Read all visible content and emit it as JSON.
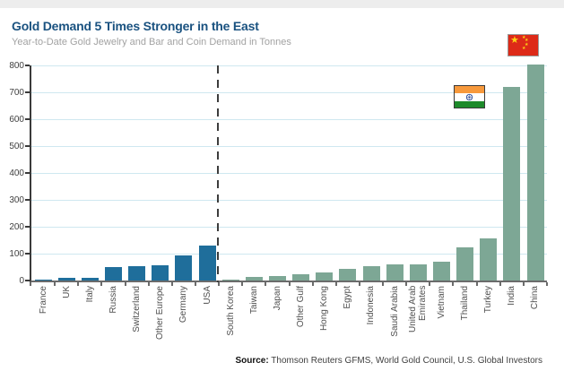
{
  "source": {
    "label": "Source:",
    "text": " Thomson Reuters GFMS, World Gold Council, U.S. Global Investors"
  },
  "chart_data": {
    "type": "bar",
    "title": "Gold Demand 5 Times Stronger in the East",
    "subtitle": "Year-to-Date Gold Jewelry and Bar and Coin Demand in Tonnes",
    "ylabel": "Tonnes",
    "xlabel": "",
    "ylim": [
      0,
      800
    ],
    "yticks": [
      0,
      100,
      200,
      300,
      400,
      500,
      600,
      700,
      800
    ],
    "grid": "horizontal light-blue",
    "legend": "none",
    "divider": {
      "style": "vertical dashed line",
      "between": [
        "USA",
        "South Korea"
      ],
      "meaning": "separates West (blue bars) from East (green bars)"
    },
    "annotations": [
      {
        "icon": "india-flag-icon",
        "near": "India bar top"
      },
      {
        "icon": "china-flag-icon",
        "near": "China bar top"
      }
    ],
    "colors": {
      "west": "#1f6e9b",
      "east": "#7da795"
    },
    "categories": [
      "France",
      "UK",
      "Italy",
      "Russia",
      "Switzerland",
      "Other Europe",
      "Germany",
      "USA",
      "South Korea",
      "Taiwan",
      "Japan",
      "Other Gulf",
      "Hong Kong",
      "Egypt",
      "Indonesia",
      "Saudi Arabia",
      "United Arab Emirates",
      "Vietnam",
      "Thailand",
      "Turkey",
      "India",
      "China"
    ],
    "bars": [
      {
        "label": "France",
        "value": 4,
        "region": "west"
      },
      {
        "label": "UK",
        "value": 10,
        "region": "west"
      },
      {
        "label": "Italy",
        "value": 10,
        "region": "west"
      },
      {
        "label": "Russia",
        "value": 50,
        "region": "west"
      },
      {
        "label": "Switzerland",
        "value": 55,
        "region": "west"
      },
      {
        "label": "Other Europe",
        "value": 57,
        "region": "west"
      },
      {
        "label": "Germany",
        "value": 92,
        "region": "west"
      },
      {
        "label": "USA",
        "value": 131,
        "region": "west"
      },
      {
        "label": "South Korea",
        "value": 5,
        "region": "east"
      },
      {
        "label": "Taiwan",
        "value": 12,
        "region": "east"
      },
      {
        "label": "Japan",
        "value": 16,
        "region": "east"
      },
      {
        "label": "Other Gulf",
        "value": 22,
        "region": "east"
      },
      {
        "label": "Hong Kong",
        "value": 31,
        "region": "east"
      },
      {
        "label": "Egypt",
        "value": 45,
        "region": "east"
      },
      {
        "label": "Indonesia",
        "value": 54,
        "region": "east"
      },
      {
        "label": "Saudi Arabia",
        "value": 61,
        "region": "east"
      },
      {
        "label": "United Arab Emirates",
        "value": 61,
        "region": "east"
      },
      {
        "label": "Vietnam",
        "value": 70,
        "region": "east"
      },
      {
        "label": "Thailand",
        "value": 122,
        "region": "east"
      },
      {
        "label": "Turkey",
        "value": 158,
        "region": "east"
      },
      {
        "label": "India",
        "value": 720,
        "region": "east"
      },
      {
        "label": "China",
        "value": 805,
        "region": "east"
      }
    ]
  }
}
